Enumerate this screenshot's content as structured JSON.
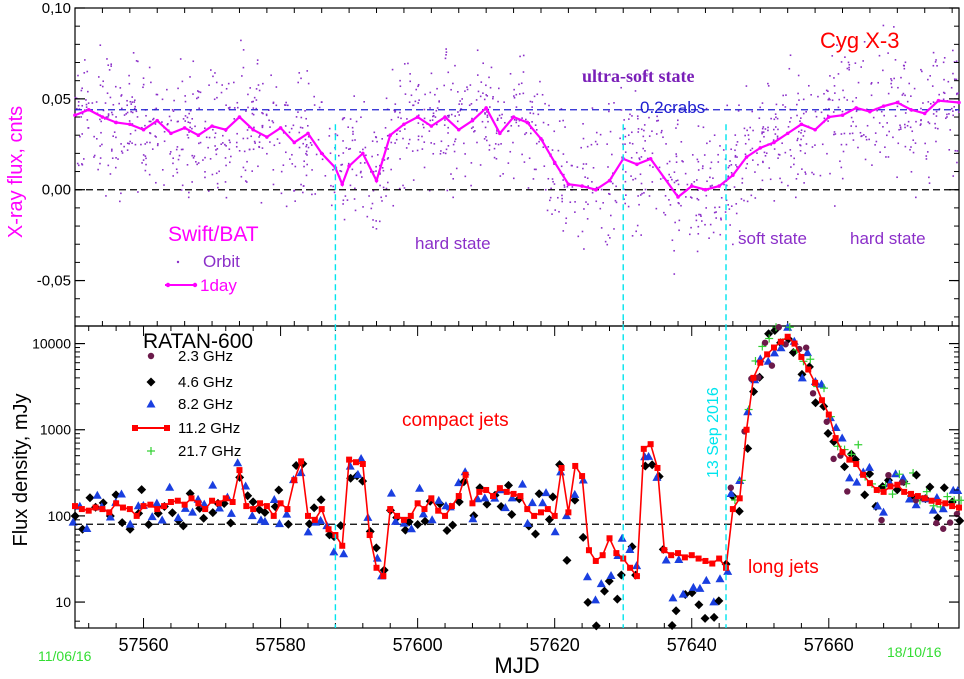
{
  "colors": {
    "bat_points": "#8b2fc9",
    "bat_line": "#ff00ff",
    "crab_line": "#2020d0",
    "zero_line": "#000000",
    "state_boundary": "#00e5ee",
    "ghz_2_3": "#6b1a4a",
    "ghz_4_6": "#000000",
    "ghz_8_2": "#1a3fe0",
    "ghz_11_2": "#ff0000",
    "ghz_21_7": "#30d030",
    "date_labels": "#33dd33",
    "title_red": "#ff0000",
    "state_purple": "#8b2fc9"
  },
  "chart_data": [
    {
      "type": "scatter",
      "title": "Cyg X-3",
      "instrument": "Swift/BAT",
      "ylabel": "X-ray flux, cnts",
      "xlim": [
        57550,
        57679
      ],
      "ylim": [
        -0.075,
        0.1
      ],
      "y_ticks": [
        "0,10",
        "0,05",
        "0,00",
        "-0,05"
      ],
      "y_tick_values": [
        0.1,
        0.05,
        0.0,
        -0.05
      ],
      "crab_level": {
        "value": 0.044,
        "label": "0.2crabs"
      },
      "zero_level": 0.0,
      "legend": {
        "orbit": "Orbit",
        "day": "1day"
      },
      "annotations": {
        "ultra_soft": "ultra-soft state",
        "hard_left": "hard state",
        "soft": "soft state",
        "hard_right": "hard state"
      },
      "series": [
        {
          "name": "1day",
          "x": [
            57550,
            57552,
            57554,
            57556,
            57558,
            57560,
            57562,
            57564,
            57566,
            57568,
            57570,
            57572,
            57574,
            57576,
            57578,
            57580,
            57582,
            57584,
            57586,
            57588,
            57589,
            57590,
            57592,
            57594,
            57596,
            57598,
            57600,
            57602,
            57604,
            57606,
            57608,
            57610,
            57612,
            57614,
            57616,
            57618,
            57620,
            57622,
            57624,
            57626,
            57628,
            57630,
            57632,
            57634,
            57638,
            57640,
            57642,
            57644,
            57646,
            57648,
            57650,
            57652,
            57654,
            57656,
            57658,
            57660,
            57662,
            57664,
            57666,
            57668,
            57670,
            57672,
            57674,
            57676,
            57679
          ],
          "y": [
            0.041,
            0.044,
            0.04,
            0.037,
            0.036,
            0.033,
            0.038,
            0.031,
            0.034,
            0.03,
            0.035,
            0.033,
            0.04,
            0.033,
            0.029,
            0.034,
            0.026,
            0.031,
            0.02,
            0.012,
            0.003,
            0.013,
            0.02,
            0.005,
            0.03,
            0.036,
            0.04,
            0.035,
            0.04,
            0.033,
            0.038,
            0.045,
            0.031,
            0.04,
            0.037,
            0.028,
            0.015,
            0.003,
            0.002,
            0.0,
            0.005,
            0.017,
            0.014,
            0.017,
            -0.004,
            0.002,
            0.0,
            0.002,
            0.008,
            0.018,
            0.023,
            0.026,
            0.031,
            0.036,
            0.033,
            0.04,
            0.041,
            0.045,
            0.043,
            0.046,
            0.048,
            0.044,
            0.042,
            0.049,
            0.048
          ]
        }
      ]
    },
    {
      "type": "scatter",
      "title": "RATAN-600",
      "xlabel": "MJD",
      "ylabel": "Flux density, mJy",
      "scale": "log",
      "xlim": [
        57550,
        57679
      ],
      "ylim": [
        5,
        16000
      ],
      "x_ticks": [
        "57560",
        "57580",
        "57600",
        "57620",
        "57640",
        "57660"
      ],
      "x_tick_values": [
        57560,
        57580,
        57600,
        57620,
        57640,
        57660
      ],
      "y_ticks": [
        "10",
        "100",
        "1000",
        "10000"
      ],
      "y_tick_values": [
        10,
        100,
        1000,
        10000
      ],
      "reference_level": 80,
      "date_start": "11/06/16",
      "date_end": "18/10/16",
      "vertical_label": "13 Sep 2016",
      "annotations": {
        "compact": "compact jets",
        "long": "long jets"
      },
      "state_boundaries": [
        57588,
        57630,
        57645
      ],
      "series": [
        {
          "name": "2.3 GHz"
        },
        {
          "name": "4.6 GHz"
        },
        {
          "name": "8.2 GHz"
        },
        {
          "name": "11.2 GHz",
          "x": [
            57550,
            57551,
            57552,
            57553,
            57554,
            57555,
            57556,
            57557,
            57558,
            57559,
            57560,
            57561,
            57562,
            57563,
            57564,
            57565,
            57566,
            57567,
            57568,
            57569,
            57570,
            57571,
            57572,
            57573,
            57574,
            57575,
            57576,
            57577,
            57578,
            57579,
            57580,
            57581,
            57582,
            57583,
            57584,
            57585,
            57586,
            57587,
            57588,
            57589,
            57590,
            57591,
            57592,
            57593,
            57594,
            57595,
            57596,
            57597,
            57598,
            57599,
            57600,
            57601,
            57602,
            57603,
            57604,
            57605,
            57606,
            57607,
            57608,
            57609,
            57610,
            57611,
            57612,
            57613,
            57614,
            57615,
            57616,
            57617,
            57618,
            57619,
            57620,
            57621,
            57622,
            57623,
            57624,
            57625,
            57626,
            57627,
            57628,
            57629,
            57630,
            57631,
            57632,
            57633,
            57634,
            57635,
            57636,
            57637,
            57638,
            57639,
            57640,
            57641,
            57642,
            57643,
            57644,
            57645,
            57646,
            57647,
            57648,
            57649,
            57650,
            57651,
            57652,
            57653,
            57654,
            57655,
            57656,
            57657,
            57658,
            57659,
            57660,
            57661,
            57662,
            57663,
            57664,
            57665,
            57666,
            57667,
            57668,
            57669,
            57670,
            57671,
            57672,
            57673,
            57674,
            57675,
            57676,
            57677,
            57678,
            57679
          ],
          "y": [
            130,
            120,
            115,
            125,
            120,
            110,
            140,
            125,
            120,
            100,
            130,
            135,
            120,
            130,
            145,
            150,
            135,
            160,
            140,
            120,
            150,
            140,
            160,
            145,
            340,
            130,
            120,
            140,
            130,
            100,
            140,
            120,
            260,
            430,
            100,
            90,
            120,
            70,
            60,
            45,
            450,
            420,
            400,
            60,
            25,
            20,
            120,
            100,
            90,
            100,
            140,
            120,
            160,
            115,
            100,
            130,
            170,
            300,
            140,
            190,
            200,
            170,
            210,
            190,
            180,
            170,
            120,
            100,
            110,
            120,
            100,
            360,
            110,
            380,
            290,
            40,
            30,
            35,
            55,
            37,
            32,
            25,
            20,
            600,
            680,
            360,
            40,
            35,
            37,
            33,
            35,
            32,
            30,
            28,
            32,
            25,
            120,
            160,
            1000,
            4000,
            6000,
            7500,
            9000,
            10500,
            12000,
            10000,
            7000,
            5000,
            3500,
            2200,
            1500,
            800,
            550,
            450,
            400,
            300,
            240,
            200,
            190,
            220,
            230,
            190,
            180,
            170,
            160,
            150,
            145,
            140,
            130,
            125
          ]
        },
        {
          "name": "21.7 GHz"
        }
      ]
    }
  ]
}
